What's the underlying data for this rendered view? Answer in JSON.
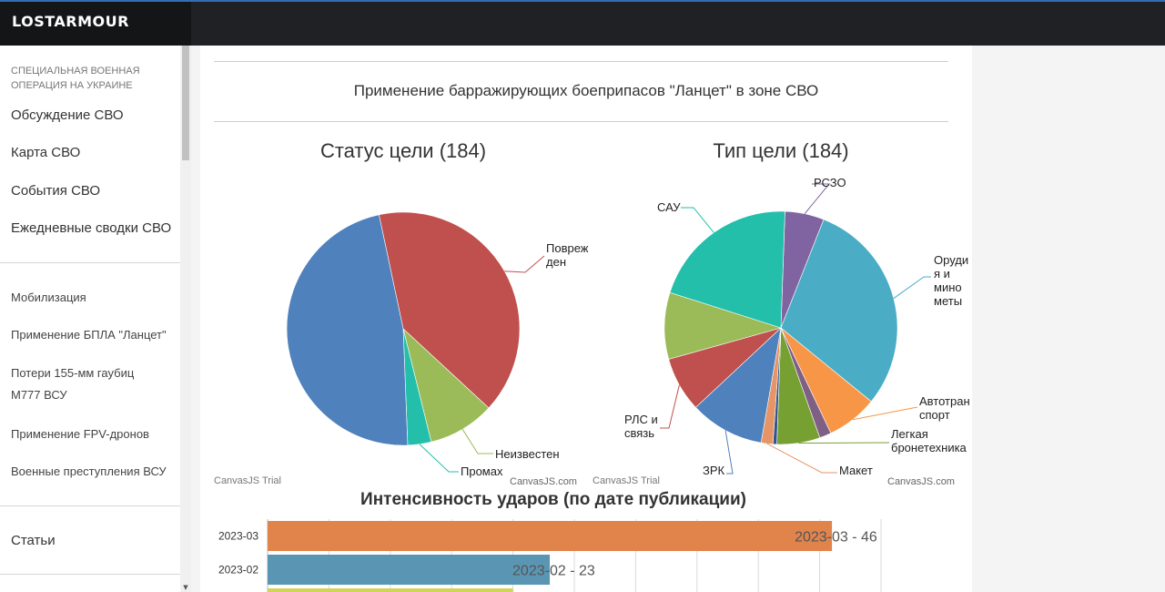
{
  "app": {
    "logo": "LOSTARMOUR"
  },
  "sidebar": {
    "section_title": [
      "СПЕЦИАЛЬНАЯ ВОЕННАЯ",
      "ОПЕРАЦИЯ НА УКРАИНЕ"
    ],
    "primary_items": [
      "Обсуждение СВО",
      "Карта СВО",
      "События СВО",
      "Ежедневные сводки СВО"
    ],
    "secondary_items": [
      "Мобилизация",
      "Применение БПЛА \"Ланцет\"",
      "Потери 155-мм гаубиц M777 ВСУ",
      "Применение FPV-дронов",
      "Военные преступления ВСУ"
    ],
    "bottom_items": [
      "Статьи"
    ]
  },
  "page": {
    "title": "Применение барражирующих боеприпасов \"Ланцет\" в зоне СВО"
  },
  "chart_data": [
    {
      "type": "pie",
      "title": "Статус цели (184)",
      "watermark_left": "CanvasJS Trial",
      "watermark_right": "CanvasJS.com",
      "slices": [
        {
          "label": "Поврежден",
          "value": 74,
          "color": "#c0504e"
        },
        {
          "label": "Неизвестен",
          "value": 17,
          "color": "#9bbb58"
        },
        {
          "label": "Промах",
          "value": 6,
          "color": "#23bfaa"
        },
        {
          "label": "",
          "value": 87,
          "color": "#4f81bc"
        }
      ]
    },
    {
      "type": "pie",
      "title": "Тип цели (184)",
      "watermark_left": "CanvasJS Trial",
      "watermark_right": "CanvasJS.com",
      "slices": [
        {
          "label": "РСЗО",
          "value": 10,
          "color": "#8064a1"
        },
        {
          "label": "Орудия и минометы",
          "value": 55,
          "color": "#4aacc5"
        },
        {
          "label": "Автотранспорт",
          "value": 13,
          "color": "#f79647"
        },
        {
          "label": "",
          "value": 3,
          "color": "#7f6084"
        },
        {
          "label": "Легкая бронетехника",
          "value": 11,
          "color": "#77a033"
        },
        {
          "label": "",
          "value": 1,
          "color": "#33558b"
        },
        {
          "label": "Макет",
          "value": 3,
          "color": "#e59566"
        },
        {
          "label": "ЗРК",
          "value": 19,
          "color": "#4f81bc"
        },
        {
          "label": "РЛС и связь",
          "value": 14,
          "color": "#c0504e"
        },
        {
          "label": "",
          "value": 17,
          "color": "#9bbb58"
        },
        {
          "label": "САУ",
          "value": 38,
          "color": "#23bfaa"
        }
      ]
    },
    {
      "type": "bar",
      "title": "Интенсивность ударов (по дате публикации)",
      "categories": [
        "2023-03",
        "2023-02",
        ""
      ],
      "values": [
        46,
        23,
        20
      ],
      "labels": [
        "2023-03 - 46",
        "2023-02 - 23",
        ""
      ],
      "colors": [
        "#e0844c",
        "#5a96b4",
        "#d3d35a"
      ],
      "xlim": [
        0,
        50
      ]
    }
  ]
}
